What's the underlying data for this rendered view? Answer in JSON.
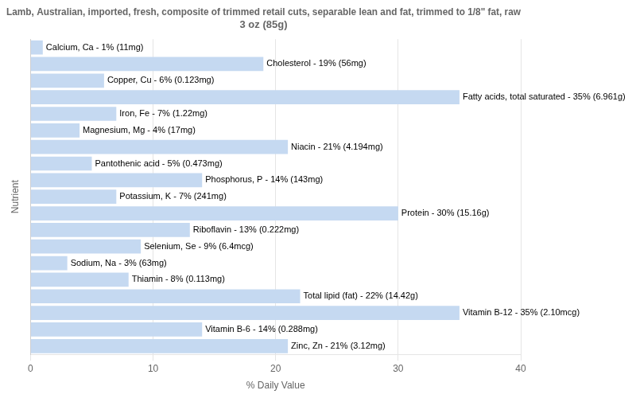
{
  "chart_data": {
    "type": "bar",
    "orientation": "horizontal",
    "title": "Lamb, Australian, imported, fresh, composite of trimmed retail cuts, separable lean and fat, trimmed to 1/8\" fat, raw\n3 oz (85g)",
    "xlabel": "% Daily Value",
    "ylabel": "Nutrient",
    "categories": [
      "Calcium, Ca - 1% (11mg)",
      "Cholesterol - 19% (56mg)",
      "Copper, Cu - 6% (0.123mg)",
      "Fatty acids, total saturated - 35% (6.961g)",
      "Iron, Fe - 7% (1.22mg)",
      "Magnesium, Mg - 4% (17mg)",
      "Niacin - 21% (4.194mg)",
      "Pantothenic acid - 5% (0.473mg)",
      "Phosphorus, P - 14% (143mg)",
      "Potassium, K - 7% (241mg)",
      "Protein - 30% (15.16g)",
      "Riboflavin - 13% (0.222mg)",
      "Selenium, Se - 9% (6.4mcg)",
      "Sodium, Na - 3% (63mg)",
      "Thiamin - 8% (0.113mg)",
      "Total lipid (fat) - 22% (14.42g)",
      "Vitamin B-12 - 35% (2.10mcg)",
      "Vitamin B-6 - 14% (0.288mg)",
      "Zinc, Zn - 21% (3.12mg)"
    ],
    "values": [
      1,
      19,
      6,
      35,
      7,
      4,
      21,
      5,
      14,
      7,
      30,
      13,
      9,
      3,
      8,
      22,
      35,
      14,
      21
    ],
    "color": "#c5d9f1",
    "xlim": [
      0,
      40
    ],
    "xticks": [
      0,
      10,
      20,
      30,
      40
    ],
    "grid": true,
    "tick_labels": "x"
  }
}
